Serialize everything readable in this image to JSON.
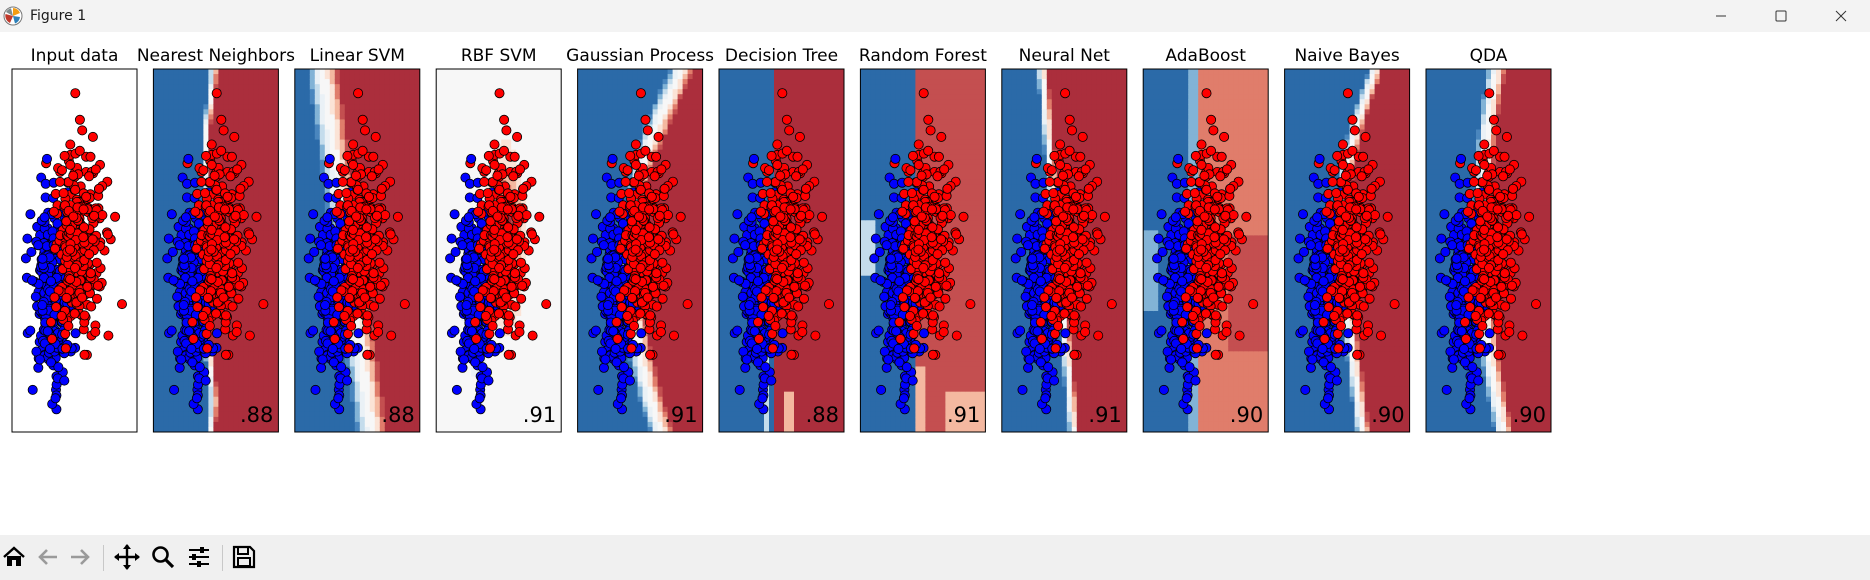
{
  "window": {
    "title": "Figure 1",
    "controls": [
      "minimize-icon",
      "maximize-icon",
      "close-icon"
    ]
  },
  "toolbar": {
    "buttons": [
      "home-icon",
      "back-icon",
      "forward-icon",
      "pan-icon",
      "zoom-icon",
      "configure-subplots-icon",
      "save-icon"
    ]
  },
  "colors": {
    "class0_point": "#0000ff",
    "class1_point": "#ff0000",
    "background_low": "#4a7eb5",
    "background_high": "#b23a48"
  },
  "chart_data": {
    "type": "scatter",
    "panels": [
      {
        "title": "Input data",
        "score": ""
      },
      {
        "title": "Nearest Neighbors",
        "score": ".88"
      },
      {
        "title": "Linear SVM",
        "score": ".88"
      },
      {
        "title": "RBF SVM",
        "score": ".91"
      },
      {
        "title": "Gaussian Process",
        "score": ".91"
      },
      {
        "title": "Decision Tree",
        "score": ".88"
      },
      {
        "title": "Random Forest",
        "score": ".91"
      },
      {
        "title": "Neural Net",
        "score": ".91"
      },
      {
        "title": "AdaBoost",
        "score": ".90"
      },
      {
        "title": "Naive Bayes",
        "score": ".90"
      },
      {
        "title": "QDA",
        "score": ".90"
      }
    ],
    "xlim": [
      -3,
      4.5
    ],
    "ylim": [
      -4.5,
      6
    ],
    "grid": false
  }
}
